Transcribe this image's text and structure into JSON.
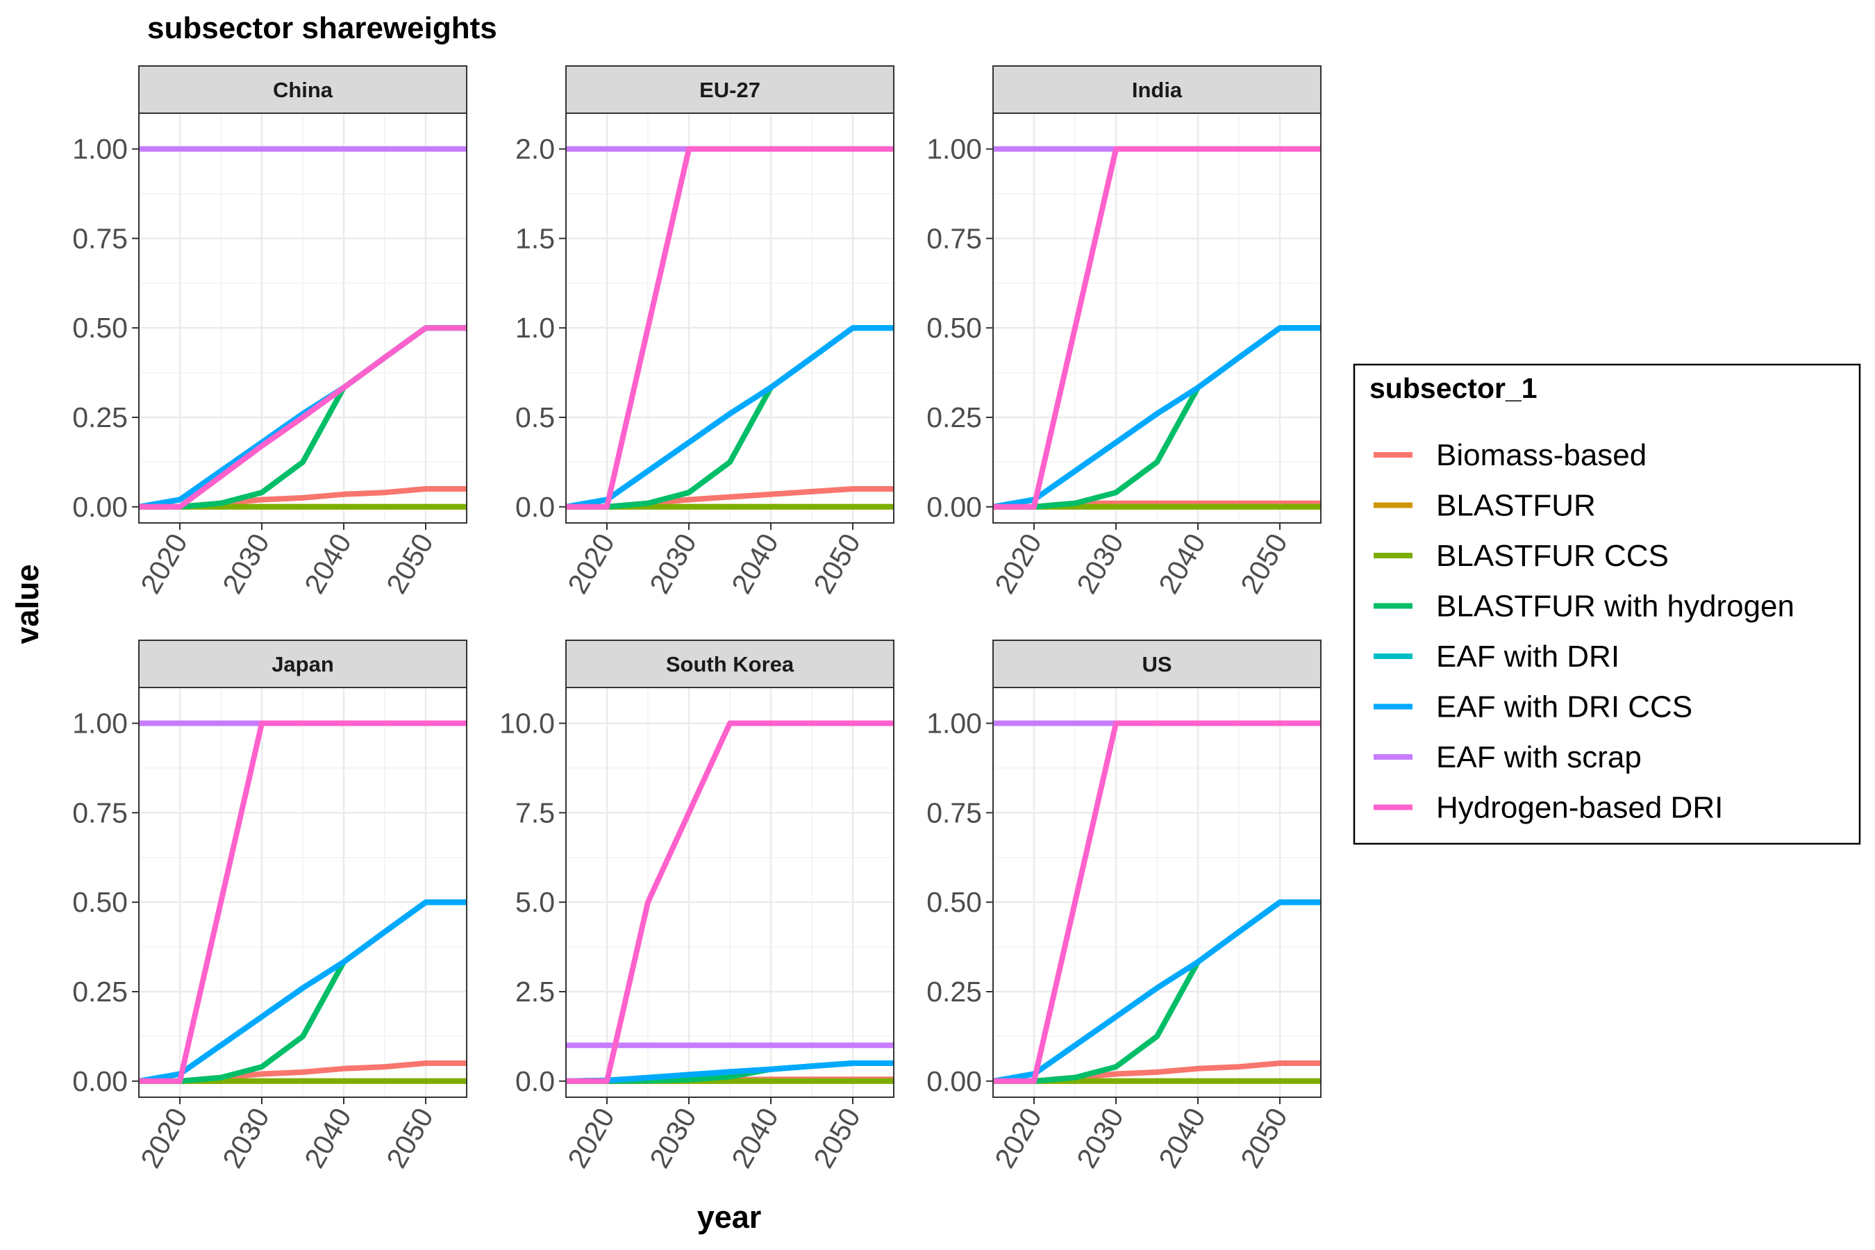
{
  "title": "subsector shareweights",
  "xlabel": "year",
  "ylabel": "value",
  "legend": {
    "title": "subsector_1",
    "placement": "right"
  },
  "series_colors": {
    "Biomass-based": "#F8766D",
    "BLASTFUR": "#CD9600",
    "BLASTFUR CCS": "#7CAE00",
    "BLASTFUR with hydrogen": "#00BE67",
    "EAF with DRI": "#00BFC4",
    "EAF with DRI CCS": "#00A9FF",
    "EAF with scrap": "#C77CFF",
    "Hydrogen-based DRI": "#FF61CC"
  },
  "chart_data": [
    {
      "type": "line",
      "panel": "China",
      "xlim": [
        2015,
        2055
      ],
      "ylim": [
        -0.045,
        1.1
      ],
      "xticks": [
        "2020",
        "2030",
        "2040",
        "2050"
      ],
      "yticks": [
        "0.00",
        "0.25",
        "0.50",
        "0.75",
        "1.00"
      ],
      "x": [
        2015,
        2020,
        2025,
        2030,
        2035,
        2040,
        2045,
        2050,
        2055
      ],
      "series": [
        {
          "name": "Biomass-based",
          "values": [
            0,
            0,
            0.01,
            0.02,
            0.025,
            0.035,
            0.04,
            0.05,
            0.05
          ]
        },
        {
          "name": "BLASTFUR",
          "values": [
            0,
            0,
            0,
            0,
            0,
            0,
            0,
            0,
            0
          ]
        },
        {
          "name": "BLASTFUR CCS",
          "values": [
            0,
            0,
            0,
            0,
            0,
            0,
            0,
            0,
            0
          ]
        },
        {
          "name": "BLASTFUR with hydrogen",
          "values": [
            0,
            0,
            0.01,
            0.04,
            0.125,
            0.333,
            0.417,
            0.5,
            0.5
          ]
        },
        {
          "name": "EAF with DRI",
          "values": [
            0,
            0.02,
            0.1,
            0.18,
            0.26,
            0.333,
            0.417,
            0.5,
            0.5
          ]
        },
        {
          "name": "EAF with DRI CCS",
          "values": [
            0,
            0.02,
            0.1,
            0.18,
            0.26,
            0.333,
            0.417,
            0.5,
            0.5
          ]
        },
        {
          "name": "EAF with scrap",
          "values": [
            1,
            1,
            1,
            1,
            1,
            1,
            1,
            1,
            1
          ]
        },
        {
          "name": "Hydrogen-based DRI",
          "values": [
            0,
            0,
            0.085,
            0.17,
            0.25,
            0.333,
            0.417,
            0.5,
            0.5
          ]
        }
      ]
    },
    {
      "type": "line",
      "panel": "EU-27",
      "xlim": [
        2015,
        2055
      ],
      "ylim": [
        -0.09,
        2.2
      ],
      "xticks": [
        "2020",
        "2030",
        "2040",
        "2050"
      ],
      "yticks": [
        "0.0",
        "0.5",
        "1.0",
        "1.5",
        "2.0"
      ],
      "x": [
        2015,
        2020,
        2025,
        2030,
        2035,
        2040,
        2045,
        2050,
        2055
      ],
      "series": [
        {
          "name": "Biomass-based",
          "values": [
            0,
            0,
            0.02,
            0.04,
            0.055,
            0.07,
            0.085,
            0.1,
            0.1
          ]
        },
        {
          "name": "BLASTFUR",
          "values": [
            0,
            0,
            0,
            0,
            0,
            0,
            0,
            0,
            0
          ]
        },
        {
          "name": "BLASTFUR CCS",
          "values": [
            0,
            0,
            0,
            0,
            0,
            0,
            0,
            0,
            0
          ]
        },
        {
          "name": "BLASTFUR with hydrogen",
          "values": [
            0,
            0,
            0.02,
            0.08,
            0.25,
            0.667,
            0.833,
            1,
            1
          ]
        },
        {
          "name": "EAF with DRI",
          "values": [
            0,
            0.04,
            0.2,
            0.36,
            0.52,
            0.667,
            0.833,
            1,
            1
          ]
        },
        {
          "name": "EAF with DRI CCS",
          "values": [
            0,
            0.04,
            0.2,
            0.36,
            0.52,
            0.667,
            0.833,
            1,
            1
          ]
        },
        {
          "name": "EAF with scrap",
          "values": [
            2,
            2,
            2,
            2,
            2,
            2,
            2,
            2,
            2
          ]
        },
        {
          "name": "Hydrogen-based DRI",
          "values": [
            0,
            0,
            1,
            2,
            2,
            2,
            2,
            2,
            2
          ]
        }
      ]
    },
    {
      "type": "line",
      "panel": "India",
      "xlim": [
        2015,
        2055
      ],
      "ylim": [
        -0.045,
        1.1
      ],
      "xticks": [
        "2020",
        "2030",
        "2040",
        "2050"
      ],
      "yticks": [
        "0.00",
        "0.25",
        "0.50",
        "0.75",
        "1.00"
      ],
      "x": [
        2015,
        2020,
        2025,
        2030,
        2035,
        2040,
        2045,
        2050,
        2055
      ],
      "series": [
        {
          "name": "Biomass-based",
          "values": [
            0,
            0,
            0.01,
            0.01,
            0.01,
            0.01,
            0.01,
            0.01,
            0.01
          ]
        },
        {
          "name": "BLASTFUR",
          "values": [
            0,
            0,
            0,
            0,
            0,
            0,
            0,
            0,
            0
          ]
        },
        {
          "name": "BLASTFUR CCS",
          "values": [
            0,
            0,
            0,
            0,
            0,
            0,
            0,
            0,
            0
          ]
        },
        {
          "name": "BLASTFUR with hydrogen",
          "values": [
            0,
            0,
            0.01,
            0.04,
            0.125,
            0.333,
            0.417,
            0.5,
            0.5
          ]
        },
        {
          "name": "EAF with DRI",
          "values": [
            0,
            0.02,
            0.1,
            0.18,
            0.26,
            0.333,
            0.417,
            0.5,
            0.5
          ]
        },
        {
          "name": "EAF with DRI CCS",
          "values": [
            0,
            0.02,
            0.1,
            0.18,
            0.26,
            0.333,
            0.417,
            0.5,
            0.5
          ]
        },
        {
          "name": "EAF with scrap",
          "values": [
            1,
            1,
            1,
            1,
            1,
            1,
            1,
            1,
            1
          ]
        },
        {
          "name": "Hydrogen-based DRI",
          "values": [
            0,
            0,
            0.5,
            1,
            1,
            1,
            1,
            1,
            1
          ]
        }
      ]
    },
    {
      "type": "line",
      "panel": "Japan",
      "xlim": [
        2015,
        2055
      ],
      "ylim": [
        -0.045,
        1.1
      ],
      "xticks": [
        "2020",
        "2030",
        "2040",
        "2050"
      ],
      "yticks": [
        "0.00",
        "0.25",
        "0.50",
        "0.75",
        "1.00"
      ],
      "x": [
        2015,
        2020,
        2025,
        2030,
        2035,
        2040,
        2045,
        2050,
        2055
      ],
      "series": [
        {
          "name": "Biomass-based",
          "values": [
            0,
            0,
            0.01,
            0.02,
            0.025,
            0.035,
            0.04,
            0.05,
            0.05
          ]
        },
        {
          "name": "BLASTFUR",
          "values": [
            0,
            0,
            0,
            0,
            0,
            0,
            0,
            0,
            0
          ]
        },
        {
          "name": "BLASTFUR CCS",
          "values": [
            0,
            0,
            0,
            0,
            0,
            0,
            0,
            0,
            0
          ]
        },
        {
          "name": "BLASTFUR with hydrogen",
          "values": [
            0,
            0,
            0.01,
            0.04,
            0.125,
            0.333,
            0.417,
            0.5,
            0.5
          ]
        },
        {
          "name": "EAF with DRI",
          "values": [
            0,
            0.02,
            0.1,
            0.18,
            0.26,
            0.333,
            0.417,
            0.5,
            0.5
          ]
        },
        {
          "name": "EAF with DRI CCS",
          "values": [
            0,
            0.02,
            0.1,
            0.18,
            0.26,
            0.333,
            0.417,
            0.5,
            0.5
          ]
        },
        {
          "name": "EAF with scrap",
          "values": [
            1,
            1,
            1,
            1,
            1,
            1,
            1,
            1,
            1
          ]
        },
        {
          "name": "Hydrogen-based DRI",
          "values": [
            0,
            0,
            0.5,
            1,
            1,
            1,
            1,
            1,
            1
          ]
        }
      ]
    },
    {
      "type": "line",
      "panel": "South Korea",
      "xlim": [
        2015,
        2055
      ],
      "ylim": [
        -0.45,
        11
      ],
      "xticks": [
        "2020",
        "2030",
        "2040",
        "2050"
      ],
      "yticks": [
        "0.0",
        "2.5",
        "5.0",
        "7.5",
        "10.0"
      ],
      "x": [
        2015,
        2020,
        2025,
        2030,
        2035,
        2040,
        2045,
        2050,
        2055
      ],
      "series": [
        {
          "name": "Biomass-based",
          "values": [
            0,
            0,
            0,
            0.02,
            0.04,
            0.05,
            0.05,
            0.05,
            0.05
          ]
        },
        {
          "name": "BLASTFUR",
          "values": [
            0,
            0,
            0,
            0,
            0,
            0,
            0,
            0,
            0
          ]
        },
        {
          "name": "BLASTFUR CCS",
          "values": [
            0,
            0,
            0,
            0,
            0,
            0,
            0,
            0,
            0
          ]
        },
        {
          "name": "BLASTFUR with hydrogen",
          "values": [
            0,
            0,
            0.01,
            0.04,
            0.125,
            0.333,
            0.417,
            0.5,
            0.5
          ]
        },
        {
          "name": "EAF with DRI",
          "values": [
            0,
            0.02,
            0.1,
            0.18,
            0.26,
            0.333,
            0.417,
            0.5,
            0.5
          ]
        },
        {
          "name": "EAF with DRI CCS",
          "values": [
            0,
            0.02,
            0.1,
            0.18,
            0.26,
            0.333,
            0.417,
            0.5,
            0.5
          ]
        },
        {
          "name": "EAF with scrap",
          "values": [
            1,
            1,
            1,
            1,
            1,
            1,
            1,
            1,
            1
          ]
        },
        {
          "name": "Hydrogen-based DRI",
          "values": [
            0,
            0,
            5,
            7.5,
            10,
            10,
            10,
            10,
            10
          ]
        }
      ]
    },
    {
      "type": "line",
      "panel": "US",
      "xlim": [
        2015,
        2055
      ],
      "ylim": [
        -0.045,
        1.1
      ],
      "xticks": [
        "2020",
        "2030",
        "2040",
        "2050"
      ],
      "yticks": [
        "0.00",
        "0.25",
        "0.50",
        "0.75",
        "1.00"
      ],
      "x": [
        2015,
        2020,
        2025,
        2030,
        2035,
        2040,
        2045,
        2050,
        2055
      ],
      "series": [
        {
          "name": "Biomass-based",
          "values": [
            0,
            0,
            0.01,
            0.02,
            0.025,
            0.035,
            0.04,
            0.05,
            0.05
          ]
        },
        {
          "name": "BLASTFUR",
          "values": [
            0,
            0,
            0,
            0,
            0,
            0,
            0,
            0,
            0
          ]
        },
        {
          "name": "BLASTFUR CCS",
          "values": [
            0,
            0,
            0,
            0,
            0,
            0,
            0,
            0,
            0
          ]
        },
        {
          "name": "BLASTFUR with hydrogen",
          "values": [
            0,
            0,
            0.01,
            0.04,
            0.125,
            0.333,
            0.417,
            0.5,
            0.5
          ]
        },
        {
          "name": "EAF with DRI",
          "values": [
            0,
            0.02,
            0.1,
            0.18,
            0.26,
            0.333,
            0.417,
            0.5,
            0.5
          ]
        },
        {
          "name": "EAF with DRI CCS",
          "values": [
            0,
            0.02,
            0.1,
            0.18,
            0.26,
            0.333,
            0.417,
            0.5,
            0.5
          ]
        },
        {
          "name": "EAF with scrap",
          "values": [
            1,
            1,
            1,
            1,
            1,
            1,
            1,
            1,
            1
          ]
        },
        {
          "name": "Hydrogen-based DRI",
          "values": [
            0,
            0,
            0.5,
            1,
            1,
            1,
            1,
            1,
            1
          ]
        }
      ]
    }
  ]
}
